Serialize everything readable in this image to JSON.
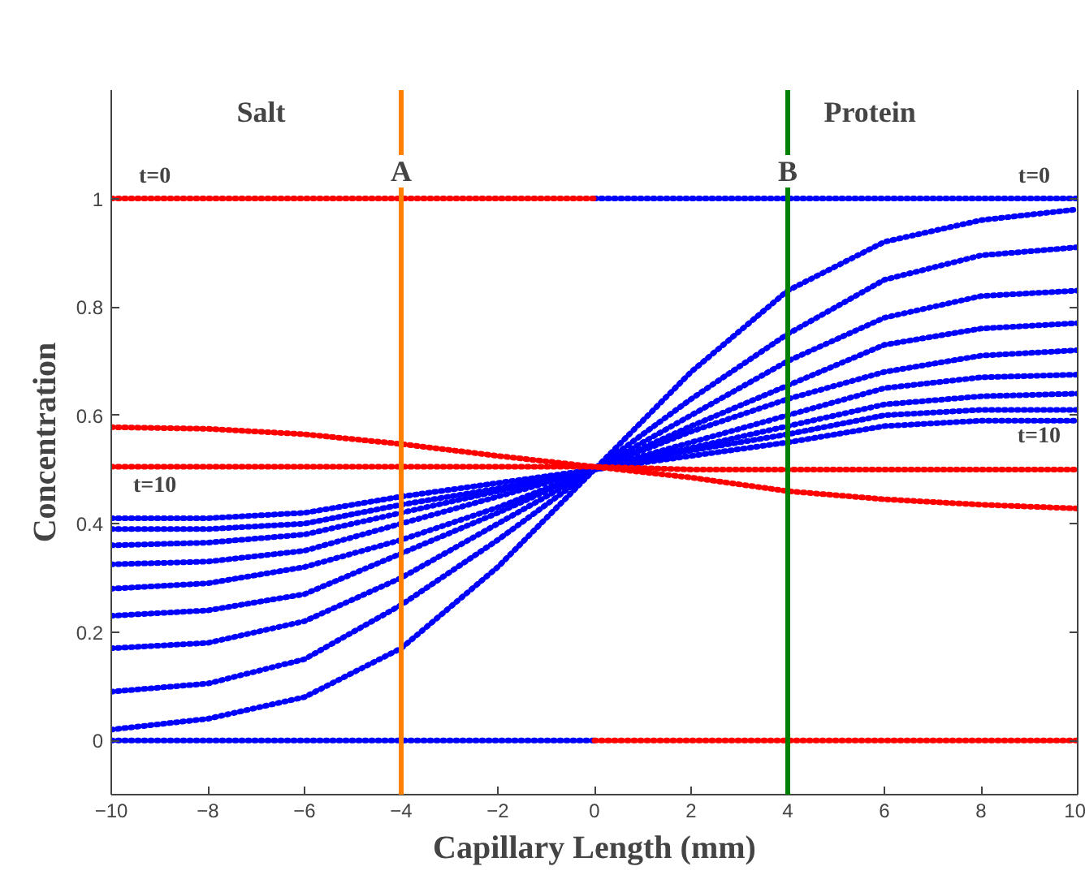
{
  "chart_data": {
    "type": "line",
    "xlabel": "Capillary Length (mm)",
    "ylabel": "Concentration",
    "x": [
      -10,
      -8,
      -6,
      -4,
      -2,
      0,
      2,
      4,
      6,
      8,
      10
    ],
    "xlim": [
      -10,
      10
    ],
    "xticks": [
      -10,
      -8,
      -6,
      -4,
      -2,
      0,
      2,
      4,
      6,
      8,
      10
    ],
    "ylim": [
      -0.1,
      1.2
    ],
    "yticks": [
      0,
      0.2,
      0.4,
      0.6,
      0.8,
      1
    ],
    "grid": false,
    "line_style": "dotted",
    "series": [
      {
        "color": "#0000ff",
        "x": [
          -10,
          0
        ],
        "values": [
          0,
          0
        ]
      },
      {
        "color": "#0000ff",
        "x": [
          0,
          10
        ],
        "values": [
          1,
          1
        ]
      },
      {
        "color": "#0000ff",
        "values": [
          0.02,
          0.04,
          0.08,
          0.17,
          0.32,
          0.5,
          0.68,
          0.83,
          0.92,
          0.96,
          0.98
        ]
      },
      {
        "color": "#0000ff",
        "values": [
          0.09,
          0.105,
          0.15,
          0.25,
          0.37,
          0.5,
          0.63,
          0.75,
          0.85,
          0.895,
          0.91
        ]
      },
      {
        "color": "#0000ff",
        "values": [
          0.17,
          0.18,
          0.22,
          0.3,
          0.4,
          0.5,
          0.6,
          0.7,
          0.78,
          0.82,
          0.83
        ]
      },
      {
        "color": "#0000ff",
        "values": [
          0.23,
          0.24,
          0.27,
          0.345,
          0.42,
          0.5,
          0.58,
          0.655,
          0.73,
          0.76,
          0.77
        ]
      },
      {
        "color": "#0000ff",
        "values": [
          0.28,
          0.29,
          0.32,
          0.37,
          0.43,
          0.5,
          0.57,
          0.63,
          0.68,
          0.71,
          0.72
        ]
      },
      {
        "color": "#0000ff",
        "values": [
          0.325,
          0.33,
          0.35,
          0.4,
          0.45,
          0.5,
          0.55,
          0.6,
          0.65,
          0.67,
          0.675
        ]
      },
      {
        "color": "#0000ff",
        "values": [
          0.36,
          0.365,
          0.38,
          0.42,
          0.46,
          0.5,
          0.54,
          0.58,
          0.62,
          0.635,
          0.64
        ]
      },
      {
        "color": "#0000ff",
        "values": [
          0.39,
          0.39,
          0.4,
          0.435,
          0.465,
          0.5,
          0.535,
          0.565,
          0.6,
          0.61,
          0.61
        ]
      },
      {
        "color": "#0000ff",
        "values": [
          0.41,
          0.41,
          0.42,
          0.45,
          0.475,
          0.5,
          0.525,
          0.55,
          0.58,
          0.59,
          0.59
        ]
      },
      {
        "color": "#ff0000",
        "x": [
          -10,
          0
        ],
        "values": [
          1,
          1
        ]
      },
      {
        "color": "#ff0000",
        "x": [
          0,
          10
        ],
        "values": [
          0,
          0
        ]
      },
      {
        "color": "#ff0000",
        "values": [
          0.578,
          0.575,
          0.565,
          0.547,
          0.525,
          0.505,
          0.485,
          0.46,
          0.445,
          0.435,
          0.428
        ]
      },
      {
        "color": "#ff0000",
        "values": [
          0.505,
          0.505,
          0.505,
          0.505,
          0.505,
          0.505,
          0.5,
          0.5,
          0.5,
          0.5,
          0.5
        ]
      }
    ],
    "ref_lines": [
      {
        "axis": "x",
        "value": -4,
        "label": "A",
        "color": "#ff8000"
      },
      {
        "axis": "x",
        "value": 4,
        "label": "B",
        "color": "#008000"
      }
    ],
    "annotations": [
      "Salt",
      "Protein",
      "t=0",
      "t=0",
      "t=10",
      "t=10"
    ]
  }
}
